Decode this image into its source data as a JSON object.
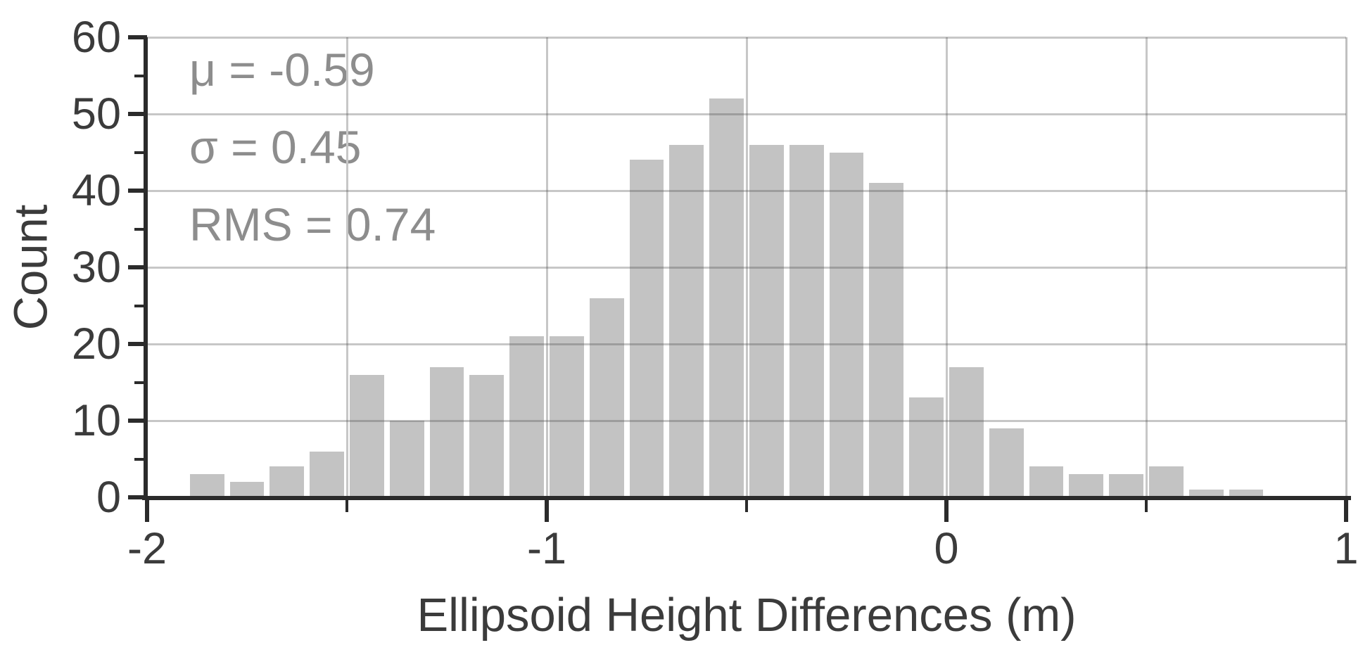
{
  "figure_title": "Ellipsoid height differences histogram",
  "chart_data": {
    "type": "bar",
    "subtype": "histogram",
    "title": "",
    "xlabel": "Ellipsoid Height Differences (m)",
    "ylabel": "Count",
    "xlim": [
      -2,
      1
    ],
    "ylim": [
      0,
      60
    ],
    "x_major_ticks": [
      -2,
      -1,
      0,
      1
    ],
    "x_major_tick_labels": [
      "-2",
      "-1",
      "0",
      "1"
    ],
    "x_minor_ticks": [
      -1.5,
      -0.5,
      0.5
    ],
    "y_major_ticks": [
      0,
      10,
      20,
      30,
      40,
      50,
      60
    ],
    "y_major_tick_labels": [
      "0",
      "10",
      "20",
      "30",
      "40",
      "50",
      "60"
    ],
    "y_minor_ticks": [
      5,
      15,
      25,
      35,
      45,
      55
    ],
    "grid": true,
    "gridline_positions_x": [
      -1.5,
      -1,
      -0.5,
      0,
      0.5
    ],
    "gridline_positions_y": [
      10,
      20,
      30,
      40,
      50,
      60
    ],
    "legend": "none",
    "histogram": {
      "bin_start": -1.9,
      "bin_width": 0.1,
      "counts": [
        3,
        2,
        4,
        6,
        16,
        10,
        17,
        16,
        21,
        21,
        26,
        44,
        46,
        52,
        46,
        46,
        45,
        41,
        13,
        17,
        9,
        4,
        3,
        3,
        4,
        1,
        1
      ]
    },
    "annotations": [
      {
        "text": "μ = -0.59"
      },
      {
        "text": "σ = 0.45"
      },
      {
        "text": "RMS = 0.74"
      }
    ],
    "stats": {
      "mu": -0.59,
      "sigma": 0.45,
      "rms": 0.74
    },
    "colors": {
      "background": "#ffffff",
      "bar_fill": "#c3c3c3",
      "bar_gap": "#ffffff",
      "gridline": "#c7c7c7",
      "gridline_over_bars": "rgba(70,70,70,0.30)",
      "axis": "#2b2b2b",
      "tick_label": "#3b3b3b",
      "axis_title": "#3b3b3b",
      "annotation_text": "#8d8d8d"
    }
  }
}
